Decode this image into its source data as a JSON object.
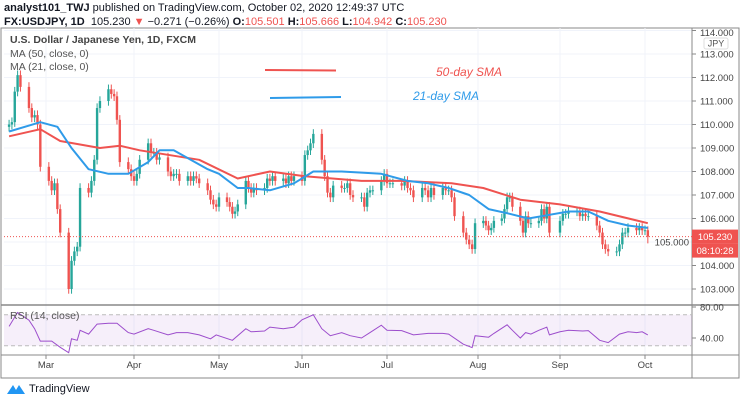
{
  "header": {
    "author": "analyst101_TWJ",
    "published": "published on TradingView.com, October 02, 2020 12:49:37 UTC",
    "symbol": "FX:USDJPY, 1D",
    "last": "105.230",
    "change_icon": "triangle-down-icon",
    "change": "−0.271 (−0.26%)",
    "o_label": "O:",
    "o": "105.501",
    "h_label": "H:",
    "h": "105.666",
    "l_label": "L:",
    "l": "104.942",
    "c_label": "C:",
    "c": "105.230"
  },
  "legend": {
    "title": "U.S. Dollar / Japanese Yen, 1D, FXCM",
    "ma50": "MA (50, close, 0)",
    "ma21": "MA (21, close, 0)",
    "rsi": "RSI (14, close)"
  },
  "footer": {
    "brand": "TradingView",
    "logo_icon": "tradingview-logo-icon"
  },
  "colors": {
    "up": "#26a69a",
    "down": "#ef5350",
    "ma50": "#ef5350",
    "ma21": "#2f9be9",
    "rsi": "#9c4dcc",
    "price_label": "#ef5350"
  },
  "chart_data": {
    "type": "candlestick",
    "currency": "JPY",
    "price_axis": {
      "ticks": [
        "103.000",
        "104.000",
        "105.000",
        "106.000",
        "107.000",
        "108.000",
        "109.000",
        "110.000",
        "111.000",
        "112.000",
        "113.000",
        "114.000"
      ],
      "range": [
        102.5,
        114.0
      ]
    },
    "time_axis": {
      "ticks": [
        [
          "Mar",
          "2020-03-01"
        ],
        [
          "Apr",
          "2020-04-01"
        ],
        [
          "May",
          "2020-05-01"
        ],
        [
          "Jun",
          "2020-06-01"
        ],
        [
          "Jul",
          "2020-07-01"
        ],
        [
          "Aug",
          "2020-08-01"
        ],
        [
          "Sep",
          "2020-09-01"
        ],
        [
          "Oct",
          "2020-10-01"
        ]
      ]
    },
    "grid": true,
    "last_price": {
      "value": 105.23,
      "label": "105.230",
      "countdown": "08:10:28"
    },
    "annotations": [
      {
        "text": "50-day SMA",
        "color": "#ef5350"
      },
      {
        "text": "21-day SMA",
        "color": "#2f9be9"
      }
    ],
    "last_bar": {
      "date": "2020-10-02",
      "open": 105.501,
      "high": 105.666,
      "low": 104.942,
      "close": 105.23
    },
    "closes": [
      [
        "2020-02-17",
        110.0
      ],
      [
        "2020-02-18",
        110.1
      ],
      [
        "2020-02-19",
        111.4
      ],
      [
        "2020-02-20",
        112.1
      ],
      [
        "2020-02-21",
        111.6
      ],
      [
        "2020-02-24",
        110.7
      ],
      [
        "2020-02-25",
        110.3
      ],
      [
        "2020-02-26",
        110.4
      ],
      [
        "2020-02-27",
        110.0
      ],
      [
        "2020-02-28",
        108.2
      ],
      [
        "2020-03-02",
        107.6
      ],
      [
        "2020-03-03",
        107.2
      ],
      [
        "2020-03-04",
        107.5
      ],
      [
        "2020-03-05",
        106.4
      ],
      [
        "2020-03-06",
        105.4
      ],
      [
        "2020-03-09",
        103.0
      ],
      [
        "2020-03-10",
        104.2
      ],
      [
        "2020-03-11",
        104.6
      ],
      [
        "2020-03-12",
        104.8
      ],
      [
        "2020-03-13",
        107.3
      ],
      [
        "2020-03-16",
        107.1
      ],
      [
        "2020-03-17",
        107.6
      ],
      [
        "2020-03-18",
        108.5
      ],
      [
        "2020-03-19",
        110.7
      ],
      [
        "2020-03-20",
        111.0
      ],
      [
        "2020-03-23",
        111.5
      ],
      [
        "2020-03-24",
        111.3
      ],
      [
        "2020-03-25",
        111.2
      ],
      [
        "2020-03-26",
        110.2
      ],
      [
        "2020-03-27",
        108.4
      ],
      [
        "2020-03-30",
        108.1
      ],
      [
        "2020-03-31",
        107.8
      ],
      [
        "2020-04-01",
        107.6
      ],
      [
        "2020-04-02",
        107.9
      ],
      [
        "2020-04-03",
        108.5
      ],
      [
        "2020-04-06",
        109.2
      ],
      [
        "2020-04-07",
        108.8
      ],
      [
        "2020-04-08",
        108.8
      ],
      [
        "2020-04-09",
        108.5
      ],
      [
        "2020-04-10",
        108.6
      ],
      [
        "2020-04-13",
        108.0
      ],
      [
        "2020-04-14",
        107.8
      ],
      [
        "2020-04-15",
        107.9
      ],
      [
        "2020-04-16",
        107.9
      ],
      [
        "2020-04-17",
        107.6
      ],
      [
        "2020-04-20",
        107.8
      ],
      [
        "2020-04-21",
        107.6
      ],
      [
        "2020-04-22",
        107.8
      ],
      [
        "2020-04-23",
        107.7
      ],
      [
        "2020-04-24",
        107.5
      ],
      [
        "2020-04-27",
        107.2
      ],
      [
        "2020-04-28",
        106.8
      ],
      [
        "2020-04-29",
        106.6
      ],
      [
        "2020-04-30",
        106.5
      ],
      [
        "2020-05-01",
        106.9
      ],
      [
        "2020-05-04",
        106.7
      ],
      [
        "2020-05-05",
        106.5
      ],
      [
        "2020-05-06",
        106.2
      ],
      [
        "2020-05-07",
        106.3
      ],
      [
        "2020-05-08",
        106.6
      ],
      [
        "2020-05-11",
        107.6
      ],
      [
        "2020-05-12",
        107.3
      ],
      [
        "2020-05-13",
        107.1
      ],
      [
        "2020-05-14",
        107.3
      ],
      [
        "2020-05-15",
        107.2
      ],
      [
        "2020-05-18",
        107.3
      ],
      [
        "2020-05-19",
        107.7
      ],
      [
        "2020-05-20",
        107.6
      ],
      [
        "2020-05-21",
        107.8
      ],
      [
        "2020-05-22",
        107.6
      ],
      [
        "2020-05-25",
        107.7
      ],
      [
        "2020-05-26",
        107.5
      ],
      [
        "2020-05-27",
        107.8
      ],
      [
        "2020-05-28",
        107.6
      ],
      [
        "2020-05-29",
        107.8
      ],
      [
        "2020-06-01",
        107.6
      ],
      [
        "2020-06-02",
        108.7
      ],
      [
        "2020-06-03",
        108.9
      ],
      [
        "2020-06-04",
        109.2
      ],
      [
        "2020-06-05",
        109.6
      ],
      [
        "2020-06-08",
        108.5
      ],
      [
        "2020-06-09",
        107.8
      ],
      [
        "2020-06-10",
        107.1
      ],
      [
        "2020-06-11",
        106.9
      ],
      [
        "2020-06-12",
        107.4
      ],
      [
        "2020-06-15",
        107.3
      ],
      [
        "2020-06-16",
        107.3
      ],
      [
        "2020-06-17",
        107.5
      ],
      [
        "2020-06-18",
        107.0
      ],
      [
        "2020-06-19",
        106.9
      ],
      [
        "2020-06-22",
        106.9
      ],
      [
        "2020-06-23",
        106.5
      ],
      [
        "2020-06-24",
        107.1
      ],
      [
        "2020-06-25",
        107.2
      ],
      [
        "2020-06-26",
        107.2
      ],
      [
        "2020-06-29",
        107.6
      ],
      [
        "2020-06-30",
        107.9
      ],
      [
        "2020-07-01",
        107.5
      ],
      [
        "2020-07-02",
        107.5
      ],
      [
        "2020-07-03",
        107.5
      ],
      [
        "2020-07-06",
        107.4
      ],
      [
        "2020-07-07",
        107.6
      ],
      [
        "2020-07-08",
        107.3
      ],
      [
        "2020-07-09",
        107.2
      ],
      [
        "2020-07-10",
        106.9
      ],
      [
        "2020-07-13",
        107.3
      ],
      [
        "2020-07-14",
        107.2
      ],
      [
        "2020-07-15",
        106.9
      ],
      [
        "2020-07-16",
        107.3
      ],
      [
        "2020-07-17",
        107.0
      ],
      [
        "2020-07-20",
        107.3
      ],
      [
        "2020-07-21",
        107.2
      ],
      [
        "2020-07-22",
        107.2
      ],
      [
        "2020-07-23",
        106.9
      ],
      [
        "2020-07-24",
        106.1
      ],
      [
        "2020-07-27",
        105.4
      ],
      [
        "2020-07-28",
        105.1
      ],
      [
        "2020-07-29",
        104.9
      ],
      [
        "2020-07-30",
        104.7
      ],
      [
        "2020-07-31",
        105.8
      ],
      [
        "2020-08-03",
        105.9
      ],
      [
        "2020-08-04",
        105.7
      ],
      [
        "2020-08-05",
        105.5
      ],
      [
        "2020-08-06",
        105.6
      ],
      [
        "2020-08-07",
        105.9
      ],
      [
        "2020-08-10",
        106.0
      ],
      [
        "2020-08-11",
        106.4
      ],
      [
        "2020-08-12",
        106.9
      ],
      [
        "2020-08-13",
        106.9
      ],
      [
        "2020-08-14",
        106.5
      ],
      [
        "2020-08-17",
        105.9
      ],
      [
        "2020-08-18",
        105.4
      ],
      [
        "2020-08-19",
        106.1
      ],
      [
        "2020-08-20",
        105.8
      ],
      [
        "2020-08-21",
        105.8
      ],
      [
        "2020-08-24",
        105.9
      ],
      [
        "2020-08-25",
        106.4
      ],
      [
        "2020-08-26",
        106.0
      ],
      [
        "2020-08-27",
        106.5
      ],
      [
        "2020-08-28",
        105.4
      ],
      [
        "2020-09-01",
        105.9
      ],
      [
        "2020-09-02",
        106.2
      ],
      [
        "2020-09-03",
        106.2
      ],
      [
        "2020-09-04",
        106.3
      ],
      [
        "2020-09-07",
        106.3
      ],
      [
        "2020-09-08",
        106.1
      ],
      [
        "2020-09-09",
        106.2
      ],
      [
        "2020-09-10",
        106.1
      ],
      [
        "2020-09-11",
        106.1
      ],
      [
        "2020-09-14",
        105.7
      ],
      [
        "2020-09-15",
        105.4
      ],
      [
        "2020-09-16",
        104.9
      ],
      [
        "2020-09-17",
        104.7
      ],
      [
        "2020-09-18",
        104.6
      ],
      [
        "2020-09-21",
        104.6
      ],
      [
        "2020-09-22",
        104.9
      ],
      [
        "2020-09-23",
        105.4
      ],
      [
        "2020-09-24",
        105.4
      ],
      [
        "2020-09-25",
        105.6
      ],
      [
        "2020-09-28",
        105.5
      ],
      [
        "2020-09-29",
        105.6
      ],
      [
        "2020-09-30",
        105.5
      ],
      [
        "2020-10-01",
        105.5
      ],
      [
        "2020-10-02",
        105.23
      ]
    ],
    "ma50": [
      [
        "2020-02-17",
        109.5
      ],
      [
        "2020-02-28",
        109.8
      ],
      [
        "2020-03-06",
        109.3
      ],
      [
        "2020-03-20",
        109.0
      ],
      [
        "2020-03-27",
        109.1
      ],
      [
        "2020-04-03",
        108.9
      ],
      [
        "2020-04-24",
        108.5
      ],
      [
        "2020-05-08",
        107.7
      ],
      [
        "2020-05-20",
        108.0
      ],
      [
        "2020-06-02",
        107.8
      ],
      [
        "2020-06-22",
        107.6
      ],
      [
        "2020-07-06",
        107.6
      ],
      [
        "2020-07-23",
        107.5
      ],
      [
        "2020-08-03",
        107.3
      ],
      [
        "2020-08-17",
        106.8
      ],
      [
        "2020-09-01",
        106.6
      ],
      [
        "2020-09-15",
        106.3
      ],
      [
        "2020-10-02",
        105.8
      ]
    ],
    "ma21": [
      [
        "2020-02-17",
        109.7
      ],
      [
        "2020-02-28",
        110.1
      ],
      [
        "2020-03-05",
        109.9
      ],
      [
        "2020-03-10",
        109.0
      ],
      [
        "2020-03-16",
        108.1
      ],
      [
        "2020-03-23",
        107.9
      ],
      [
        "2020-03-30",
        107.9
      ],
      [
        "2020-04-06",
        108.4
      ],
      [
        "2020-04-10",
        108.9
      ],
      [
        "2020-04-15",
        108.9
      ],
      [
        "2020-04-21",
        108.5
      ],
      [
        "2020-04-27",
        108.1
      ],
      [
        "2020-05-01",
        107.9
      ],
      [
        "2020-05-08",
        107.3
      ],
      [
        "2020-05-12",
        107.3
      ],
      [
        "2020-05-20",
        107.2
      ],
      [
        "2020-05-29",
        107.5
      ],
      [
        "2020-06-05",
        108.0
      ],
      [
        "2020-06-15",
        108.0
      ],
      [
        "2020-06-29",
        107.9
      ],
      [
        "2020-07-08",
        107.6
      ],
      [
        "2020-07-15",
        107.5
      ],
      [
        "2020-07-22",
        107.3
      ],
      [
        "2020-07-29",
        107.0
      ],
      [
        "2020-08-05",
        106.4
      ],
      [
        "2020-08-13",
        106.2
      ],
      [
        "2020-08-20",
        106.0
      ],
      [
        "2020-08-25",
        106.1
      ],
      [
        "2020-09-04",
        106.3
      ],
      [
        "2020-09-11",
        106.3
      ],
      [
        "2020-09-18",
        105.9
      ],
      [
        "2020-09-25",
        105.7
      ],
      [
        "2020-10-02",
        105.6
      ]
    ],
    "rsi": {
      "axis_ticks": [
        "80.00",
        "40.00"
      ],
      "bands": [
        30,
        70
      ],
      "values": [
        [
          "2020-02-17",
          55
        ],
        [
          "2020-02-20",
          73
        ],
        [
          "2020-02-24",
          63
        ],
        [
          "2020-02-26",
          52
        ],
        [
          "2020-02-28",
          36
        ],
        [
          "2020-03-03",
          36
        ],
        [
          "2020-03-06",
          28
        ],
        [
          "2020-03-09",
          21
        ],
        [
          "2020-03-10",
          39
        ],
        [
          "2020-03-12",
          37
        ],
        [
          "2020-03-13",
          50
        ],
        [
          "2020-03-16",
          45
        ],
        [
          "2020-03-19",
          58
        ],
        [
          "2020-03-23",
          59
        ],
        [
          "2020-03-26",
          59
        ],
        [
          "2020-03-30",
          47
        ],
        [
          "2020-04-01",
          45
        ],
        [
          "2020-04-06",
          52
        ],
        [
          "2020-04-08",
          50
        ],
        [
          "2020-04-13",
          44
        ],
        [
          "2020-04-16",
          47
        ],
        [
          "2020-04-20",
          47
        ],
        [
          "2020-04-24",
          44
        ],
        [
          "2020-04-28",
          39
        ],
        [
          "2020-04-30",
          44
        ],
        [
          "2020-05-06",
          37
        ],
        [
          "2020-05-11",
          52
        ],
        [
          "2020-05-13",
          48
        ],
        [
          "2020-05-18",
          49
        ],
        [
          "2020-05-20",
          54
        ],
        [
          "2020-05-25",
          52
        ],
        [
          "2020-05-29",
          54
        ],
        [
          "2020-06-01",
          63.5
        ],
        [
          "2020-06-05",
          70
        ],
        [
          "2020-06-08",
          52
        ],
        [
          "2020-06-11",
          43
        ],
        [
          "2020-06-15",
          47
        ],
        [
          "2020-06-18",
          43
        ],
        [
          "2020-06-22",
          40
        ],
        [
          "2020-06-25",
          47
        ],
        [
          "2020-06-29",
          56.5
        ],
        [
          "2020-07-01",
          50
        ],
        [
          "2020-07-06",
          49.5
        ],
        [
          "2020-07-10",
          44
        ],
        [
          "2020-07-15",
          46
        ],
        [
          "2020-07-20",
          46
        ],
        [
          "2020-07-22",
          45
        ],
        [
          "2020-07-27",
          32
        ],
        [
          "2020-07-30",
          27.6
        ],
        [
          "2020-07-31",
          43
        ],
        [
          "2020-08-05",
          41
        ],
        [
          "2020-08-07",
          46
        ],
        [
          "2020-08-12",
          57
        ],
        [
          "2020-08-14",
          50
        ],
        [
          "2020-08-17",
          40
        ],
        [
          "2020-08-19",
          47
        ],
        [
          "2020-08-21",
          45
        ],
        [
          "2020-08-24",
          50
        ],
        [
          "2020-08-27",
          54
        ],
        [
          "2020-08-28",
          44
        ],
        [
          "2020-09-01",
          48
        ],
        [
          "2020-09-04",
          50
        ],
        [
          "2020-09-09",
          49
        ],
        [
          "2020-09-11",
          49.5
        ],
        [
          "2020-09-15",
          37
        ],
        [
          "2020-09-18",
          34
        ],
        [
          "2020-09-22",
          45
        ],
        [
          "2020-09-25",
          48
        ],
        [
          "2020-09-28",
          47
        ],
        [
          "2020-09-30",
          48
        ],
        [
          "2020-10-02",
          44
        ]
      ]
    }
  }
}
